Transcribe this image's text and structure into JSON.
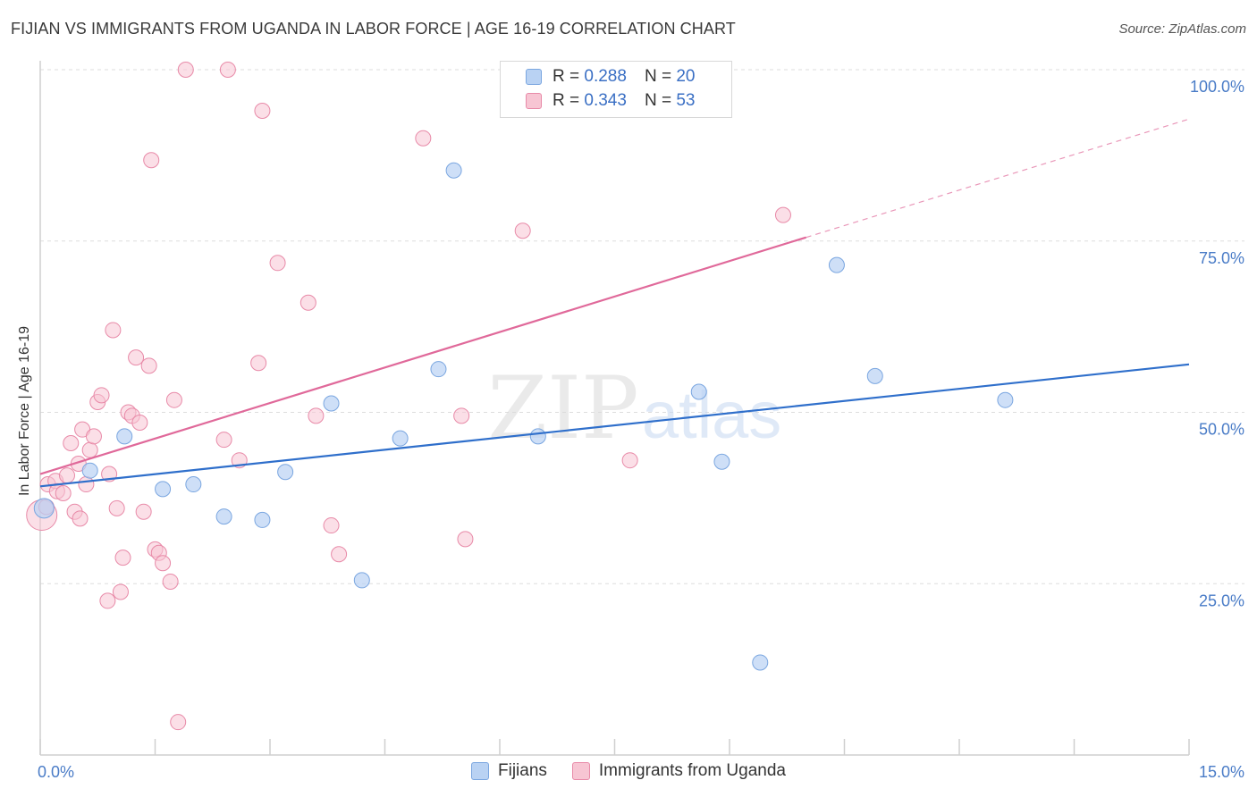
{
  "title": "FIJIAN VS IMMIGRANTS FROM UGANDA IN LABOR FORCE | AGE 16-19 CORRELATION CHART",
  "source": "Source: ZipAtlas.com",
  "watermark": {
    "zip": "ZIP",
    "atlas": "atlas"
  },
  "colors": {
    "blue_fill": "#b9d2f3",
    "blue_stroke": "#7aa6e0",
    "blue_line": "#2f6fcb",
    "pink_fill": "#f7c5d3",
    "pink_stroke": "#e88aa8",
    "pink_line": "#e0699a",
    "tick_text": "#4a7cc7",
    "grid": "#dddddd"
  },
  "legend": {
    "rows": [
      {
        "r_label": "R =",
        "r_value": "0.288",
        "n_label": "N =",
        "n_value": "20"
      },
      {
        "r_label": "R =",
        "r_value": "0.343",
        "n_label": "N =",
        "n_value": "53"
      }
    ]
  },
  "bottom_legend": [
    "Fijians",
    "Immigrants from Uganda"
  ],
  "chart_data": {
    "type": "scatter",
    "title": "FIJIAN VS IMMIGRANTS FROM UGANDA IN LABOR FORCE | AGE 16-19 CORRELATION CHART",
    "xlabel": "",
    "ylabel": "In Labor Force | Age 16-19",
    "xlim": [
      0,
      15
    ],
    "ylim": [
      0,
      100
    ],
    "x_tick_labels": [
      "0.0%",
      "15.0%"
    ],
    "y_tick_values": [
      25,
      50,
      75,
      100
    ],
    "y_tick_labels": [
      "25.0%",
      "50.0%",
      "75.0%",
      "100.0%"
    ],
    "grid": true,
    "legend_placement": "top-center",
    "series": [
      {
        "name": "Fijians",
        "r": 0.288,
        "n": 20,
        "trend": {
          "x": [
            0,
            15
          ],
          "y": [
            39.2,
            57.0
          ],
          "dashed_from": null
        },
        "points": [
          [
            0.05,
            36.0
          ],
          [
            0.65,
            41.5
          ],
          [
            1.1,
            46.5
          ],
          [
            1.6,
            38.8
          ],
          [
            2.0,
            39.5
          ],
          [
            2.4,
            34.8
          ],
          [
            2.9,
            34.3
          ],
          [
            3.2,
            41.3
          ],
          [
            3.8,
            51.3
          ],
          [
            4.2,
            25.5
          ],
          [
            4.7,
            46.2
          ],
          [
            5.2,
            56.3
          ],
          [
            5.4,
            85.3
          ],
          [
            6.5,
            46.5
          ],
          [
            8.6,
            53.0
          ],
          [
            8.9,
            42.8
          ],
          [
            9.4,
            13.5
          ],
          [
            10.4,
            71.5
          ],
          [
            10.9,
            55.3
          ],
          [
            12.6,
            51.8
          ]
        ]
      },
      {
        "name": "Immigrants from Uganda",
        "r": 0.343,
        "n": 53,
        "trend": {
          "x": [
            0,
            15
          ],
          "y": [
            41.0,
            92.8
          ],
          "solid_until_x": 10.0
        },
        "points": [
          [
            0.02,
            35.0
          ],
          [
            0.08,
            36.2
          ],
          [
            0.1,
            39.5
          ],
          [
            0.2,
            40.0
          ],
          [
            0.22,
            38.5
          ],
          [
            0.3,
            38.2
          ],
          [
            0.35,
            40.8
          ],
          [
            0.4,
            45.5
          ],
          [
            0.45,
            35.5
          ],
          [
            0.5,
            42.5
          ],
          [
            0.52,
            34.5
          ],
          [
            0.55,
            47.5
          ],
          [
            0.6,
            39.5
          ],
          [
            0.65,
            44.5
          ],
          [
            0.7,
            46.5
          ],
          [
            0.75,
            51.5
          ],
          [
            0.8,
            52.5
          ],
          [
            0.88,
            22.5
          ],
          [
            0.9,
            41.0
          ],
          [
            0.95,
            62.0
          ],
          [
            1.0,
            36.0
          ],
          [
            1.05,
            23.8
          ],
          [
            1.08,
            28.8
          ],
          [
            1.15,
            50.0
          ],
          [
            1.2,
            49.5
          ],
          [
            1.25,
            58.0
          ],
          [
            1.3,
            48.5
          ],
          [
            1.35,
            35.5
          ],
          [
            1.42,
            56.8
          ],
          [
            1.45,
            86.8
          ],
          [
            1.5,
            30.0
          ],
          [
            1.55,
            29.5
          ],
          [
            1.6,
            28.0
          ],
          [
            1.7,
            25.3
          ],
          [
            1.75,
            51.8
          ],
          [
            1.8,
            4.8
          ],
          [
            1.9,
            100.0
          ],
          [
            2.45,
            100.0
          ],
          [
            2.4,
            46.0
          ],
          [
            2.6,
            43.0
          ],
          [
            2.85,
            57.2
          ],
          [
            2.9,
            94.0
          ],
          [
            3.1,
            71.8
          ],
          [
            3.5,
            66.0
          ],
          [
            3.6,
            49.5
          ],
          [
            3.8,
            33.5
          ],
          [
            3.9,
            29.3
          ],
          [
            5.0,
            90.0
          ],
          [
            5.5,
            49.5
          ],
          [
            5.55,
            31.5
          ],
          [
            6.3,
            76.5
          ],
          [
            7.7,
            43.0
          ],
          [
            9.7,
            78.8
          ]
        ]
      }
    ]
  }
}
